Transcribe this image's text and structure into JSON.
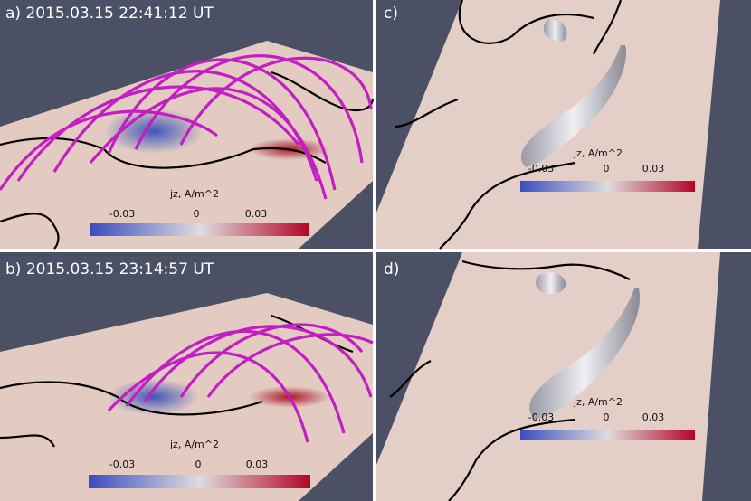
{
  "panels": [
    {
      "label": "a) 2015.03.15 22:41:12 UT",
      "colorbar": {
        "title": "jz, A/m^2",
        "ticks": [
          "-0.03",
          "0",
          "0.03"
        ]
      }
    },
    {
      "label": "c)",
      "colorbar": {
        "title": "jz, A/m^2",
        "ticks": [
          "-0.03",
          "0",
          "0.03"
        ]
      }
    },
    {
      "label": "b) 2015.03.15 23:14:57 UT",
      "colorbar": {
        "title": "jz, A/m^2",
        "ticks": [
          "-0.03",
          "0",
          "0.03"
        ]
      }
    },
    {
      "label": "d)",
      "colorbar": {
        "title": "jz, A/m^2",
        "ticks": [
          "-0.03",
          "0",
          "0.03"
        ]
      }
    }
  ]
}
